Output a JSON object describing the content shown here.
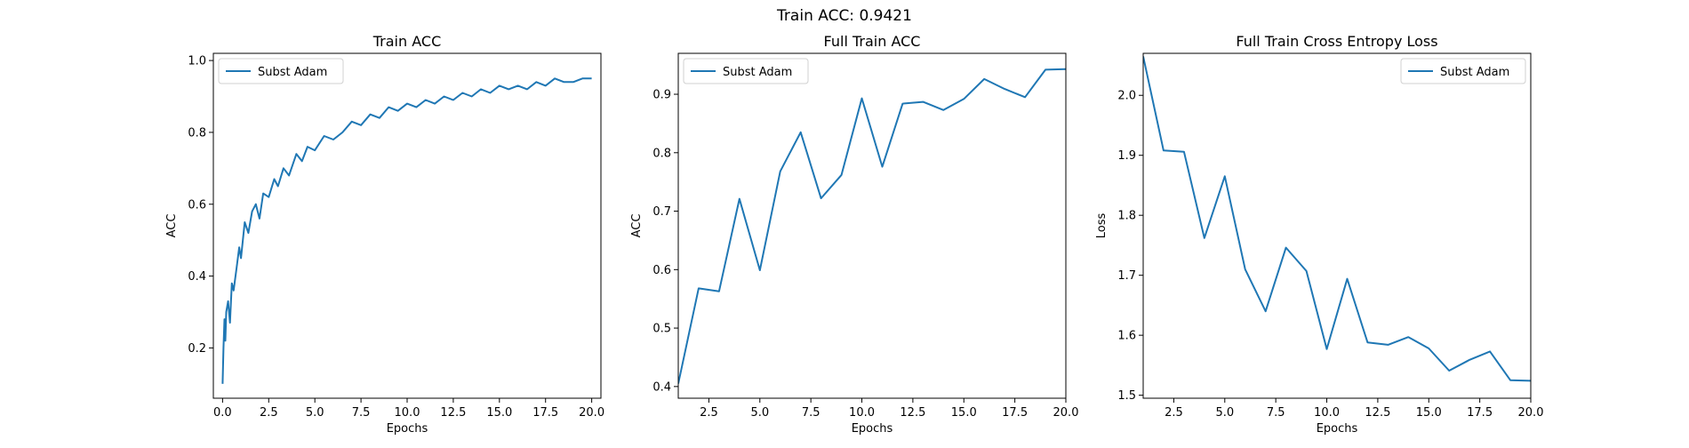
{
  "figure": {
    "suptitle": "Train ACC: 0.9421"
  },
  "colors": {
    "series": "#1f77b4",
    "axes": "#000000",
    "background": "#ffffff"
  },
  "chart_data": [
    {
      "type": "line",
      "title": "Train ACC",
      "xlabel": "Epochs",
      "ylabel": "ACC",
      "xlim": [
        -0.5,
        20.5
      ],
      "ylim": [
        0.06,
        1.02
      ],
      "xticks": [
        0.0,
        2.5,
        5.0,
        7.5,
        10.0,
        12.5,
        15.0,
        17.5,
        20.0
      ],
      "xtick_labels": [
        "0.0",
        "2.5",
        "5.0",
        "7.5",
        "10.0",
        "12.5",
        "15.0",
        "17.5",
        "20.0"
      ],
      "yticks": [
        0.2,
        0.4,
        0.6,
        0.8,
        1.0
      ],
      "ytick_labels": [
        "0.2",
        "0.4",
        "0.6",
        "0.8",
        "1.0"
      ],
      "legend": "top-left",
      "grid": false,
      "series": [
        {
          "name": "Subst Adam",
          "x": [
            0.0,
            0.05,
            0.1,
            0.15,
            0.2,
            0.3,
            0.4,
            0.5,
            0.6,
            0.75,
            0.9,
            1.0,
            1.2,
            1.4,
            1.6,
            1.8,
            2.0,
            2.2,
            2.5,
            2.8,
            3.0,
            3.3,
            3.6,
            4.0,
            4.3,
            4.6,
            5.0,
            5.5,
            6.0,
            6.5,
            7.0,
            7.5,
            8.0,
            8.5,
            9.0,
            9.5,
            10.0,
            10.5,
            11.0,
            11.5,
            12.0,
            12.5,
            13.0,
            13.5,
            14.0,
            14.5,
            15.0,
            15.5,
            16.0,
            16.5,
            17.0,
            17.5,
            18.0,
            18.5,
            19.0,
            19.5,
            20.0
          ],
          "y": [
            0.1,
            0.2,
            0.28,
            0.22,
            0.3,
            0.33,
            0.27,
            0.38,
            0.36,
            0.42,
            0.48,
            0.45,
            0.55,
            0.52,
            0.58,
            0.6,
            0.56,
            0.63,
            0.62,
            0.67,
            0.65,
            0.7,
            0.68,
            0.74,
            0.72,
            0.76,
            0.75,
            0.79,
            0.78,
            0.8,
            0.83,
            0.82,
            0.85,
            0.84,
            0.87,
            0.86,
            0.88,
            0.87,
            0.89,
            0.88,
            0.9,
            0.89,
            0.91,
            0.9,
            0.92,
            0.91,
            0.93,
            0.92,
            0.93,
            0.92,
            0.94,
            0.93,
            0.95,
            0.94,
            0.94,
            0.95,
            0.95
          ]
        }
      ]
    },
    {
      "type": "line",
      "title": "Full Train ACC",
      "xlabel": "Epochs",
      "ylabel": "ACC",
      "xlim": [
        1,
        20
      ],
      "ylim": [
        0.38,
        0.97
      ],
      "xticks": [
        2.5,
        5.0,
        7.5,
        10.0,
        12.5,
        15.0,
        17.5,
        20.0
      ],
      "xtick_labels": [
        "2.5",
        "5.0",
        "7.5",
        "10.0",
        "12.5",
        "15.0",
        "17.5",
        "20.0"
      ],
      "yticks": [
        0.4,
        0.5,
        0.6,
        0.7,
        0.8,
        0.9
      ],
      "ytick_labels": [
        "0.4",
        "0.5",
        "0.6",
        "0.7",
        "0.8",
        "0.9"
      ],
      "legend": "top-left",
      "grid": false,
      "series": [
        {
          "name": "Subst Adam",
          "x": [
            1,
            2,
            3,
            4,
            5,
            6,
            7,
            8,
            9,
            10,
            11,
            12,
            13,
            14,
            15,
            16,
            17,
            18,
            19,
            20
          ],
          "y": [
            0.405,
            0.568,
            0.563,
            0.721,
            0.599,
            0.768,
            0.835,
            0.722,
            0.762,
            0.893,
            0.776,
            0.884,
            0.887,
            0.873,
            0.892,
            0.926,
            0.909,
            0.895,
            0.942,
            0.943
          ]
        }
      ]
    },
    {
      "type": "line",
      "title": "Full Train Cross Entropy Loss",
      "xlabel": "Epochs",
      "ylabel": "Loss",
      "xlim": [
        1,
        20
      ],
      "ylim": [
        1.495,
        2.07
      ],
      "xticks": [
        2.5,
        5.0,
        7.5,
        10.0,
        12.5,
        15.0,
        17.5,
        20.0
      ],
      "xtick_labels": [
        "2.5",
        "5.0",
        "7.5",
        "10.0",
        "12.5",
        "15.0",
        "17.5",
        "20.0"
      ],
      "yticks": [
        1.5,
        1.6,
        1.7,
        1.8,
        1.9,
        2.0
      ],
      "ytick_labels": [
        "1.5",
        "1.6",
        "1.7",
        "1.8",
        "1.9",
        "2.0"
      ],
      "legend": "top-right",
      "grid": false,
      "series": [
        {
          "name": "Subst Adam",
          "x": [
            1,
            2,
            3,
            4,
            5,
            6,
            7,
            8,
            9,
            10,
            11,
            12,
            13,
            14,
            15,
            16,
            17,
            18,
            19,
            20
          ],
          "y": [
            2.065,
            1.908,
            1.906,
            1.762,
            1.865,
            1.71,
            1.64,
            1.746,
            1.707,
            1.577,
            1.694,
            1.588,
            1.584,
            1.597,
            1.578,
            1.541,
            1.559,
            1.573,
            1.525,
            1.524
          ]
        }
      ]
    }
  ]
}
